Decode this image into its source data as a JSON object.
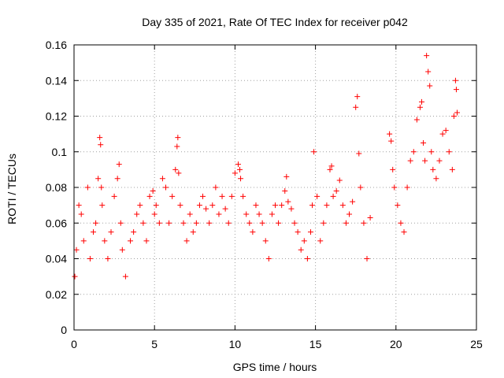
{
  "chart_data": {
    "type": "scatter",
    "title": "Day 335 of 2021, Rate Of TEC Index for receiver p042",
    "xlabel": "GPS time / hours",
    "ylabel": "ROTI / TECUs",
    "xlim": [
      0,
      25
    ],
    "ylim": [
      0,
      0.16
    ],
    "x_ticks": [
      0,
      5,
      10,
      15,
      20,
      25
    ],
    "y_ticks": [
      0,
      0.02,
      0.04,
      0.06,
      0.08,
      0.1,
      0.12,
      0.14,
      0.16
    ],
    "x_tick_labels": [
      "0",
      "5",
      "10",
      "15",
      "20",
      "25"
    ],
    "y_tick_labels": [
      "0",
      "0.02",
      "0.04",
      "0.06",
      "0.08",
      "0.1",
      "0.12",
      "0.14",
      "0.16"
    ],
    "grid": true,
    "legend": "none",
    "marker": "plus",
    "marker_color": "#ff0000",
    "series": [
      {
        "x": [
          0.05,
          0.15,
          0.3,
          0.45,
          0.6,
          0.85,
          1.0,
          1.2,
          1.35,
          1.5,
          1.6,
          1.65,
          1.7,
          1.75,
          1.9,
          2.1,
          2.3,
          2.5,
          2.7,
          2.8,
          2.9,
          3.0,
          3.2,
          3.5,
          3.7,
          3.9,
          4.1,
          4.3,
          4.5,
          4.7,
          4.9,
          5.0,
          5.1,
          5.3,
          5.5,
          5.7,
          5.9,
          6.1,
          6.3,
          6.4,
          6.45,
          6.5,
          6.6,
          6.8,
          7.0,
          7.2,
          7.4,
          7.6,
          7.8,
          8.0,
          8.2,
          8.4,
          8.6,
          8.8,
          9.0,
          9.2,
          9.4,
          9.6,
          9.8,
          10.0,
          10.2,
          10.3,
          10.35,
          10.5,
          10.7,
          10.9,
          11.1,
          11.3,
          11.5,
          11.7,
          11.9,
          12.1,
          12.3,
          12.5,
          12.7,
          12.9,
          13.1,
          13.2,
          13.3,
          13.5,
          13.7,
          13.9,
          14.1,
          14.3,
          14.5,
          14.7,
          14.8,
          14.9,
          15.1,
          15.3,
          15.5,
          15.7,
          15.9,
          16.0,
          16.1,
          16.3,
          16.5,
          16.7,
          16.9,
          17.1,
          17.3,
          17.5,
          17.6,
          17.7,
          17.8,
          18.0,
          18.2,
          18.4,
          19.6,
          19.7,
          19.8,
          19.9,
          20.1,
          20.3,
          20.5,
          20.7,
          20.9,
          21.1,
          21.3,
          21.5,
          21.6,
          21.7,
          21.8,
          21.9,
          22.0,
          22.1,
          22.2,
          22.3,
          22.5,
          22.7,
          22.9,
          23.1,
          23.3,
          23.5,
          23.6,
          23.7,
          23.75,
          23.8
        ],
        "y": [
          0.03,
          0.045,
          0.07,
          0.065,
          0.05,
          0.08,
          0.04,
          0.055,
          0.06,
          0.085,
          0.108,
          0.104,
          0.08,
          0.07,
          0.05,
          0.04,
          0.055,
          0.075,
          0.085,
          0.093,
          0.06,
          0.045,
          0.03,
          0.05,
          0.055,
          0.065,
          0.07,
          0.06,
          0.05,
          0.075,
          0.078,
          0.065,
          0.07,
          0.06,
          0.085,
          0.08,
          0.06,
          0.075,
          0.09,
          0.103,
          0.108,
          0.088,
          0.07,
          0.06,
          0.05,
          0.065,
          0.055,
          0.06,
          0.07,
          0.075,
          0.068,
          0.06,
          0.07,
          0.08,
          0.065,
          0.075,
          0.068,
          0.06,
          0.075,
          0.088,
          0.093,
          0.09,
          0.085,
          0.075,
          0.065,
          0.06,
          0.055,
          0.07,
          0.065,
          0.06,
          0.05,
          0.04,
          0.065,
          0.07,
          0.06,
          0.07,
          0.078,
          0.086,
          0.072,
          0.068,
          0.06,
          0.055,
          0.045,
          0.05,
          0.04,
          0.055,
          0.07,
          0.1,
          0.075,
          0.05,
          0.06,
          0.07,
          0.09,
          0.092,
          0.075,
          0.078,
          0.084,
          0.07,
          0.06,
          0.065,
          0.072,
          0.125,
          0.131,
          0.099,
          0.08,
          0.06,
          0.04,
          0.063,
          0.11,
          0.106,
          0.09,
          0.08,
          0.07,
          0.06,
          0.055,
          0.08,
          0.095,
          0.1,
          0.118,
          0.125,
          0.128,
          0.105,
          0.095,
          0.154,
          0.145,
          0.137,
          0.1,
          0.09,
          0.085,
          0.095,
          0.11,
          0.112,
          0.1,
          0.09,
          0.12,
          0.14,
          0.135,
          0.122
        ]
      }
    ]
  }
}
